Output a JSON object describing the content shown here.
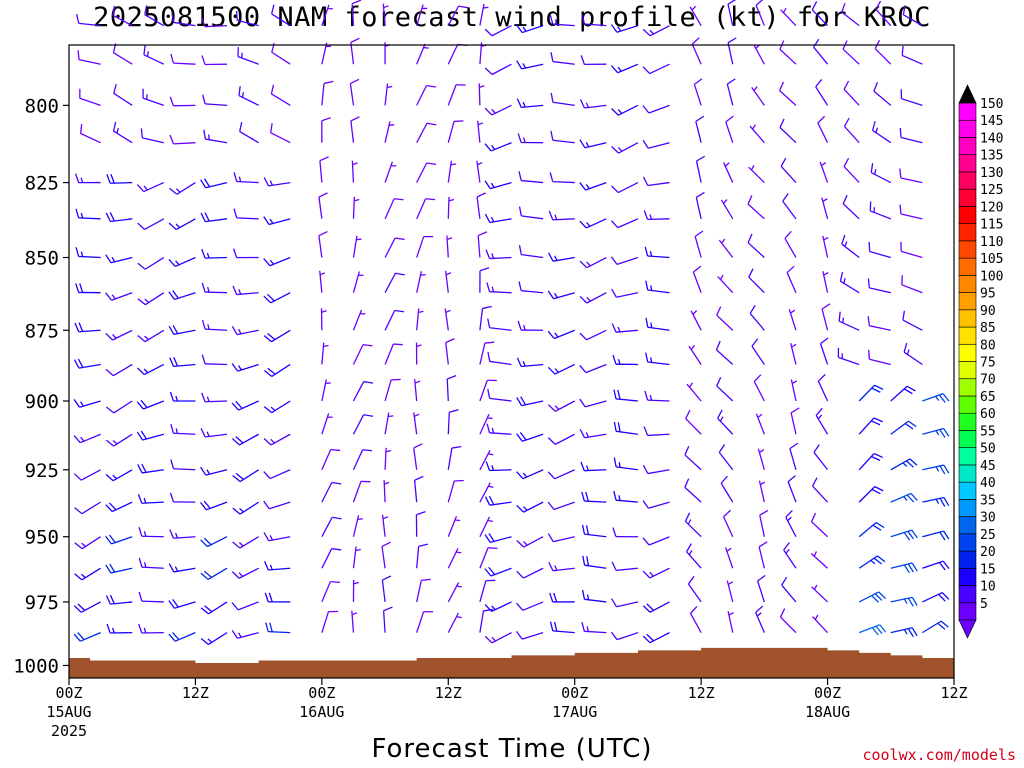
{
  "title": "2025081500 NAM forecast wind profile (kt) for KROC",
  "credit": "coolwx.com/models",
  "chart_data": {
    "type": "wind-barb time-height profile",
    "title": "2025081500 NAM forecast wind profile (kt) for KROC",
    "xlabel": "Forecast Time (UTC)",
    "ylabel": "",
    "x_range_hours": [
      0,
      84
    ],
    "y_range_hpa": [
      1005,
      781
    ],
    "y_scale": "log-pressure",
    "x_ticks": [
      {
        "hour": 0,
        "label": "00Z",
        "sub": "15AUG",
        "sub2": "2025"
      },
      {
        "hour": 12,
        "label": "12Z",
        "sub": "",
        "sub2": ""
      },
      {
        "hour": 24,
        "label": "00Z",
        "sub": "16AUG",
        "sub2": ""
      },
      {
        "hour": 36,
        "label": "12Z",
        "sub": "",
        "sub2": ""
      },
      {
        "hour": 48,
        "label": "00Z",
        "sub": "17AUG",
        "sub2": ""
      },
      {
        "hour": 60,
        "label": "12Z",
        "sub": "",
        "sub2": ""
      },
      {
        "hour": 72,
        "label": "00Z",
        "sub": "18AUG",
        "sub2": ""
      },
      {
        "hour": 84,
        "label": "12Z",
        "sub": "",
        "sub2": ""
      }
    ],
    "y_ticks": [
      800,
      825,
      850,
      875,
      900,
      925,
      950,
      975,
      1000
    ],
    "levels_hpa": [
      775,
      787,
      800,
      812,
      825,
      837,
      850,
      862,
      875,
      887,
      900,
      912,
      925,
      937,
      950,
      962,
      975,
      987,
      1000
    ],
    "times_hours": [
      0,
      3,
      6,
      9,
      12,
      15,
      18,
      21,
      24,
      27,
      30,
      33,
      36,
      39,
      42,
      45,
      48,
      51,
      54,
      57,
      60,
      63,
      66,
      69,
      72,
      75,
      78,
      81,
      84
    ],
    "wind_regimes": [
      {
        "hours": [
          0,
          22
        ],
        "level_range_hpa": [
          825,
          1000
        ],
        "direction_deg": 255,
        "speed_kt": [
          12,
          22
        ]
      },
      {
        "hours": [
          0,
          22
        ],
        "level_range_hpa": [
          775,
          825
        ],
        "direction_deg": 285,
        "speed_kt": [
          8,
          15
        ]
      },
      {
        "hours": [
          23,
          40
        ],
        "level_range_hpa": [
          775,
          1000
        ],
        "direction_deg": 10,
        "speed_kt": [
          5,
          12
        ]
      },
      {
        "hours": [
          41,
          58
        ],
        "level_range_hpa": [
          775,
          1000
        ],
        "direction_deg": 260,
        "speed_kt": [
          10,
          20
        ]
      },
      {
        "hours": [
          59,
          74
        ],
        "level_range_hpa": [
          775,
          1000
        ],
        "direction_deg": 330,
        "speed_kt": [
          6,
          14
        ]
      },
      {
        "hours": [
          75,
          84
        ],
        "level_range_hpa": [
          900,
          1000
        ],
        "direction_deg": 60,
        "speed_kt": [
          18,
          32
        ]
      },
      {
        "hours": [
          75,
          84
        ],
        "level_range_hpa": [
          775,
          900
        ],
        "direction_deg": 300,
        "speed_kt": [
          8,
          15
        ]
      }
    ],
    "surface_pressure_hpa": [
      [
        0,
        997
      ],
      [
        2,
        998
      ],
      [
        6,
        998
      ],
      [
        12,
        999
      ],
      [
        15,
        999
      ],
      [
        18,
        998
      ],
      [
        21,
        998
      ],
      [
        24,
        998
      ],
      [
        27,
        998
      ],
      [
        30,
        998
      ],
      [
        33,
        997
      ],
      [
        36,
        997
      ],
      [
        39,
        997
      ],
      [
        42,
        996
      ],
      [
        45,
        996
      ],
      [
        48,
        995
      ],
      [
        51,
        995
      ],
      [
        54,
        994
      ],
      [
        57,
        994
      ],
      [
        60,
        993
      ],
      [
        63,
        993
      ],
      [
        66,
        993
      ],
      [
        69,
        993
      ],
      [
        72,
        994
      ],
      [
        75,
        995
      ],
      [
        78,
        996
      ],
      [
        81,
        997
      ],
      [
        84,
        997
      ]
    ],
    "terrain_color": "#a0522d",
    "barb_speed_bins": [
      5,
      10,
      15,
      20,
      25,
      30,
      35,
      40,
      45,
      50,
      55,
      60,
      65,
      70,
      75,
      80,
      85,
      90,
      95,
      100,
      105,
      110,
      115,
      120,
      125,
      130,
      135,
      140,
      145,
      150
    ],
    "colorbar_labels": [
      "150",
      "145",
      "140",
      "135",
      "130",
      "125",
      "120",
      "115",
      "110",
      "105",
      "100",
      "95",
      "90",
      "85",
      "80",
      "75",
      "70",
      "65",
      "60",
      "55",
      "50",
      "45",
      "40",
      "35",
      "30",
      "25",
      "20",
      "15",
      "10",
      "5"
    ],
    "colorbar_colors": [
      "#6a00ff",
      "#4a00ff",
      "#1a00ff",
      "#0022ee",
      "#0044ee",
      "#0066ee",
      "#0099ff",
      "#00c8ff",
      "#00e8c8",
      "#00ffa0",
      "#00ff50",
      "#20ff20",
      "#60ff00",
      "#a0ff00",
      "#e0ff00",
      "#ffff00",
      "#ffe000",
      "#ffc000",
      "#ffa000",
      "#ff8800",
      "#ff6c00",
      "#ff4800",
      "#ff2400",
      "#ff0000",
      "#ff0030",
      "#ff0060",
      "#ff0090",
      "#ff00c0",
      "#ff00e8",
      "#ff00ff"
    ]
  }
}
